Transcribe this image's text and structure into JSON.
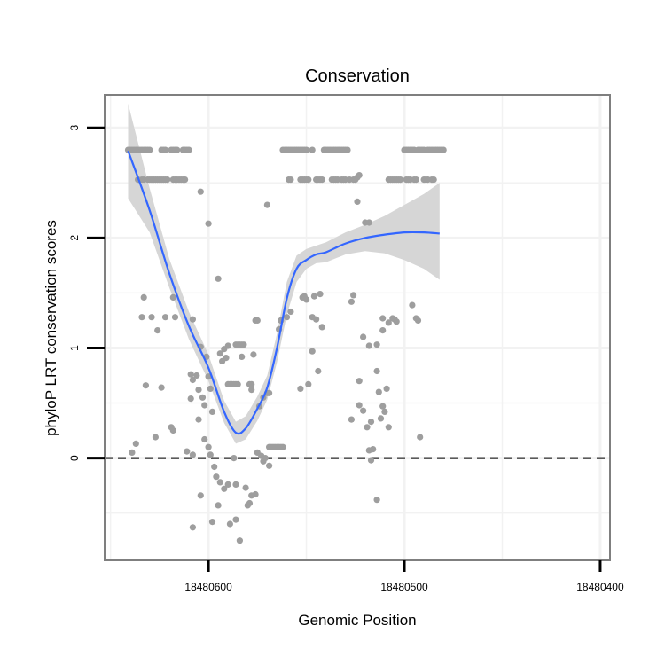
{
  "chart_data": {
    "type": "scatter",
    "title": "Conservation",
    "xlabel": "Genomic Position",
    "ylabel": "phyloP LRT conservation scores",
    "x_reversed": true,
    "xlim": [
      18480653,
      18480395
    ],
    "ylim": [
      -0.93,
      3.3
    ],
    "x_ticks": [
      18480600,
      18480500,
      18480400
    ],
    "x_tick_labels": [
      "18480600",
      "18480500",
      "18480400"
    ],
    "y_ticks": [
      0,
      1,
      2,
      3
    ],
    "y_tick_labels": [
      "0",
      "1",
      "2",
      "3"
    ],
    "reference_line": {
      "y": 0,
      "style": "dashed"
    },
    "grid": true,
    "colors": {
      "points": "#9e9e9e",
      "smooth_line": "#3366ff",
      "confidence_band": "#d6d6d6",
      "grid": "#f2f2f2",
      "panel_border": "#7f7f7f"
    },
    "points": [
      {
        "x": 18480641,
        "y": 2.8
      },
      {
        "x": 18480640,
        "y": 2.8
      },
      {
        "x": 18480639,
        "y": 2.8
      },
      {
        "x": 18480638,
        "y": 2.8
      },
      {
        "x": 18480637,
        "y": 2.8
      },
      {
        "x": 18480636,
        "y": 2.8
      },
      {
        "x": 18480635,
        "y": 2.8
      },
      {
        "x": 18480634,
        "y": 2.8
      },
      {
        "x": 18480633,
        "y": 2.8
      },
      {
        "x": 18480632,
        "y": 2.8
      },
      {
        "x": 18480631,
        "y": 2.8
      },
      {
        "x": 18480630,
        "y": 2.8
      },
      {
        "x": 18480624,
        "y": 2.8
      },
      {
        "x": 18480623,
        "y": 2.8
      },
      {
        "x": 18480622,
        "y": 2.8
      },
      {
        "x": 18480619,
        "y": 2.8
      },
      {
        "x": 18480618,
        "y": 2.8
      },
      {
        "x": 18480617,
        "y": 2.8
      },
      {
        "x": 18480616,
        "y": 2.8
      },
      {
        "x": 18480613,
        "y": 2.8
      },
      {
        "x": 18480612,
        "y": 2.8
      },
      {
        "x": 18480611,
        "y": 2.8
      },
      {
        "x": 18480610,
        "y": 2.8
      },
      {
        "x": 18480636,
        "y": 2.53
      },
      {
        "x": 18480634,
        "y": 2.53
      },
      {
        "x": 18480633,
        "y": 2.53
      },
      {
        "x": 18480631,
        "y": 2.53
      },
      {
        "x": 18480630,
        "y": 2.53
      },
      {
        "x": 18480629,
        "y": 2.53
      },
      {
        "x": 18480628,
        "y": 2.53
      },
      {
        "x": 18480627,
        "y": 2.53
      },
      {
        "x": 18480626,
        "y": 2.53
      },
      {
        "x": 18480625,
        "y": 2.53
      },
      {
        "x": 18480624,
        "y": 2.53
      },
      {
        "x": 18480623,
        "y": 2.53
      },
      {
        "x": 18480622,
        "y": 2.53
      },
      {
        "x": 18480621,
        "y": 2.53
      },
      {
        "x": 18480618,
        "y": 2.53
      },
      {
        "x": 18480617,
        "y": 2.53
      },
      {
        "x": 18480616,
        "y": 2.53
      },
      {
        "x": 18480615,
        "y": 2.53
      },
      {
        "x": 18480614,
        "y": 2.53
      },
      {
        "x": 18480613,
        "y": 2.53
      },
      {
        "x": 18480612,
        "y": 2.53
      },
      {
        "x": 18480604,
        "y": 2.42
      },
      {
        "x": 18480600,
        "y": 2.13
      },
      {
        "x": 18480595,
        "y": 1.63
      },
      {
        "x": 18480618,
        "y": 1.46
      },
      {
        "x": 18480633,
        "y": 1.46
      },
      {
        "x": 18480634,
        "y": 1.28
      },
      {
        "x": 18480629,
        "y": 1.28
      },
      {
        "x": 18480622,
        "y": 1.28
      },
      {
        "x": 18480617,
        "y": 1.28
      },
      {
        "x": 18480608,
        "y": 1.26
      },
      {
        "x": 18480626,
        "y": 1.16
      },
      {
        "x": 18480604,
        "y": 1.01
      },
      {
        "x": 18480601,
        "y": 0.92
      },
      {
        "x": 18480593,
        "y": 0.88
      },
      {
        "x": 18480591,
        "y": 0.91
      },
      {
        "x": 18480592,
        "y": 0.99
      },
      {
        "x": 18480606,
        "y": 0.75
      },
      {
        "x": 18480608,
        "y": 0.71
      },
      {
        "x": 18480609,
        "y": 0.76
      },
      {
        "x": 18480605,
        "y": 0.62
      },
      {
        "x": 18480600,
        "y": 0.74
      },
      {
        "x": 18480599,
        "y": 0.63
      },
      {
        "x": 18480594,
        "y": 0.95
      },
      {
        "x": 18480632,
        "y": 0.66
      },
      {
        "x": 18480624,
        "y": 0.64
      },
      {
        "x": 18480609,
        "y": 0.54
      },
      {
        "x": 18480603,
        "y": 0.55
      },
      {
        "x": 18480602,
        "y": 0.48
      },
      {
        "x": 18480598,
        "y": 0.42
      },
      {
        "x": 18480619,
        "y": 0.28
      },
      {
        "x": 18480618,
        "y": 0.25
      },
      {
        "x": 18480627,
        "y": 0.19
      },
      {
        "x": 18480637,
        "y": 0.13
      },
      {
        "x": 18480639,
        "y": 0.05
      },
      {
        "x": 18480605,
        "y": 0.35
      },
      {
        "x": 18480602,
        "y": 0.17
      },
      {
        "x": 18480600,
        "y": 0.1
      },
      {
        "x": 18480611,
        "y": 0.06
      },
      {
        "x": 18480608,
        "y": 0.03
      },
      {
        "x": 18480599,
        "y": 0.03
      },
      {
        "x": 18480597,
        "y": -0.08
      },
      {
        "x": 18480596,
        "y": -0.17
      },
      {
        "x": 18480594,
        "y": -0.22
      },
      {
        "x": 18480592,
        "y": -0.28
      },
      {
        "x": 18480590,
        "y": -0.24
      },
      {
        "x": 18480595,
        "y": -0.43
      },
      {
        "x": 18480598,
        "y": -0.58
      },
      {
        "x": 18480604,
        "y": -0.34
      },
      {
        "x": 18480608,
        "y": -0.63
      },
      {
        "x": 18480589,
        "y": -0.6
      },
      {
        "x": 18480586,
        "y": -0.56
      },
      {
        "x": 18480584,
        "y": -0.75
      },
      {
        "x": 18480586,
        "y": -0.24
      },
      {
        "x": 18480581,
        "y": -0.27
      },
      {
        "x": 18480578,
        "y": -0.34
      },
      {
        "x": 18480576,
        "y": -0.33
      },
      {
        "x": 18480580,
        "y": -0.43
      },
      {
        "x": 18480579,
        "y": -0.41
      },
      {
        "x": 18480590,
        "y": 0.67
      },
      {
        "x": 18480589,
        "y": 0.67
      },
      {
        "x": 18480588,
        "y": 0.67
      },
      {
        "x": 18480587,
        "y": 0.67
      },
      {
        "x": 18480586,
        "y": 0.67
      },
      {
        "x": 18480585,
        "y": 0.67
      },
      {
        "x": 18480579,
        "y": 0.67
      },
      {
        "x": 18480578,
        "y": 0.67
      },
      {
        "x": 18480586,
        "y": 1.03
      },
      {
        "x": 18480585,
        "y": 1.03
      },
      {
        "x": 18480584,
        "y": 1.03
      },
      {
        "x": 18480583,
        "y": 1.03
      },
      {
        "x": 18480582,
        "y": 1.03
      },
      {
        "x": 18480590,
        "y": 1.02
      },
      {
        "x": 18480587,
        "y": 0.0
      },
      {
        "x": 18480583,
        "y": 0.92
      },
      {
        "x": 18480577,
        "y": 0.94
      },
      {
        "x": 18480576,
        "y": 1.25
      },
      {
        "x": 18480575,
        "y": 1.25
      },
      {
        "x": 18480578,
        "y": 0.62
      },
      {
        "x": 18480572,
        "y": 0.55
      },
      {
        "x": 18480575,
        "y": 0.05
      },
      {
        "x": 18480573,
        "y": 0.02
      },
      {
        "x": 18480572,
        "y": -0.03
      },
      {
        "x": 18480571,
        "y": 0.0
      },
      {
        "x": 18480569,
        "y": -0.07
      },
      {
        "x": 18480574,
        "y": 0.47
      },
      {
        "x": 18480570,
        "y": 0.59
      },
      {
        "x": 18480569,
        "y": 0.59
      },
      {
        "x": 18480570,
        "y": 2.3
      },
      {
        "x": 18480569,
        "y": 0.1
      },
      {
        "x": 18480568,
        "y": 0.1
      },
      {
        "x": 18480567,
        "y": 0.1
      },
      {
        "x": 18480566,
        "y": 0.1
      },
      {
        "x": 18480565,
        "y": 0.1
      },
      {
        "x": 18480564,
        "y": 0.1
      },
      {
        "x": 18480563,
        "y": 0.1
      },
      {
        "x": 18480562,
        "y": 0.1
      },
      {
        "x": 18480564,
        "y": 1.17
      },
      {
        "x": 18480563,
        "y": 1.25
      },
      {
        "x": 18480560,
        "y": 1.28
      },
      {
        "x": 18480558,
        "y": 1.33
      },
      {
        "x": 18480552,
        "y": 1.46
      },
      {
        "x": 18480551,
        "y": 1.47
      },
      {
        "x": 18480546,
        "y": 1.47
      },
      {
        "x": 18480543,
        "y": 1.49
      },
      {
        "x": 18480550,
        "y": 1.44
      },
      {
        "x": 18480547,
        "y": 1.28
      },
      {
        "x": 18480545,
        "y": 1.26
      },
      {
        "x": 18480542,
        "y": 1.19
      },
      {
        "x": 18480547,
        "y": 0.97
      },
      {
        "x": 18480544,
        "y": 0.79
      },
      {
        "x": 18480549,
        "y": 0.67
      },
      {
        "x": 18480553,
        "y": 0.63
      },
      {
        "x": 18480562,
        "y": 2.8
      },
      {
        "x": 18480561,
        "y": 2.8
      },
      {
        "x": 18480560,
        "y": 2.8
      },
      {
        "x": 18480559,
        "y": 2.8
      },
      {
        "x": 18480558,
        "y": 2.8
      },
      {
        "x": 18480557,
        "y": 2.8
      },
      {
        "x": 18480556,
        "y": 2.8
      },
      {
        "x": 18480555,
        "y": 2.8
      },
      {
        "x": 18480554,
        "y": 2.8
      },
      {
        "x": 18480553,
        "y": 2.8
      },
      {
        "x": 18480552,
        "y": 2.8
      },
      {
        "x": 18480551,
        "y": 2.8
      },
      {
        "x": 18480550,
        "y": 2.8
      },
      {
        "x": 18480547,
        "y": 2.8
      },
      {
        "x": 18480541,
        "y": 2.8
      },
      {
        "x": 18480540,
        "y": 2.8
      },
      {
        "x": 18480539,
        "y": 2.8
      },
      {
        "x": 18480538,
        "y": 2.8
      },
      {
        "x": 18480537,
        "y": 2.8
      },
      {
        "x": 18480536,
        "y": 2.8
      },
      {
        "x": 18480535,
        "y": 2.8
      },
      {
        "x": 18480534,
        "y": 2.8
      },
      {
        "x": 18480533,
        "y": 2.8
      },
      {
        "x": 18480532,
        "y": 2.8
      },
      {
        "x": 18480531,
        "y": 2.8
      },
      {
        "x": 18480530,
        "y": 2.8
      },
      {
        "x": 18480529,
        "y": 2.8
      },
      {
        "x": 18480559,
        "y": 2.53
      },
      {
        "x": 18480558,
        "y": 2.53
      },
      {
        "x": 18480553,
        "y": 2.53
      },
      {
        "x": 18480552,
        "y": 2.53
      },
      {
        "x": 18480551,
        "y": 2.53
      },
      {
        "x": 18480550,
        "y": 2.53
      },
      {
        "x": 18480549,
        "y": 2.53
      },
      {
        "x": 18480545,
        "y": 2.53
      },
      {
        "x": 18480544,
        "y": 2.53
      },
      {
        "x": 18480543,
        "y": 2.53
      },
      {
        "x": 18480542,
        "y": 2.53
      },
      {
        "x": 18480537,
        "y": 2.53
      },
      {
        "x": 18480536,
        "y": 2.53
      },
      {
        "x": 18480535,
        "y": 2.53
      },
      {
        "x": 18480534,
        "y": 2.53
      },
      {
        "x": 18480532,
        "y": 2.53
      },
      {
        "x": 18480531,
        "y": 2.53
      },
      {
        "x": 18480530,
        "y": 2.53
      },
      {
        "x": 18480528,
        "y": 2.53
      },
      {
        "x": 18480526,
        "y": 2.53
      },
      {
        "x": 18480525,
        "y": 2.53
      },
      {
        "x": 18480524,
        "y": 2.55
      },
      {
        "x": 18480523,
        "y": 2.57
      },
      {
        "x": 18480524,
        "y": 2.33
      },
      {
        "x": 18480520,
        "y": 2.14
      },
      {
        "x": 18480518,
        "y": 2.14
      },
      {
        "x": 18480526,
        "y": 1.48
      },
      {
        "x": 18480527,
        "y": 1.42
      },
      {
        "x": 18480521,
        "y": 1.1
      },
      {
        "x": 18480518,
        "y": 1.02
      },
      {
        "x": 18480523,
        "y": 0.7
      },
      {
        "x": 18480523,
        "y": 0.48
      },
      {
        "x": 18480521,
        "y": 0.43
      },
      {
        "x": 18480527,
        "y": 0.35
      },
      {
        "x": 18480519,
        "y": 0.28
      },
      {
        "x": 18480517,
        "y": 0.33
      },
      {
        "x": 18480516,
        "y": 0.08
      },
      {
        "x": 18480517,
        "y": -0.02
      },
      {
        "x": 18480518,
        "y": 0.07
      },
      {
        "x": 18480514,
        "y": 0.79
      },
      {
        "x": 18480513,
        "y": 0.6
      },
      {
        "x": 18480511,
        "y": 0.47
      },
      {
        "x": 18480509,
        "y": 0.63
      },
      {
        "x": 18480510,
        "y": 0.42
      },
      {
        "x": 18480512,
        "y": 0.36
      },
      {
        "x": 18480508,
        "y": 0.28
      },
      {
        "x": 18480514,
        "y": -0.38
      },
      {
        "x": 18480511,
        "y": 1.27
      },
      {
        "x": 18480506,
        "y": 1.27
      },
      {
        "x": 18480505,
        "y": 1.26
      },
      {
        "x": 18480504,
        "y": 1.24
      },
      {
        "x": 18480514,
        "y": 1.03
      },
      {
        "x": 18480508,
        "y": 1.23
      },
      {
        "x": 18480511,
        "y": 1.16
      },
      {
        "x": 18480496,
        "y": 1.39
      },
      {
        "x": 18480494,
        "y": 1.27
      },
      {
        "x": 18480493,
        "y": 1.25
      },
      {
        "x": 18480492,
        "y": 0.19
      },
      {
        "x": 18480500,
        "y": 2.8
      },
      {
        "x": 18480499,
        "y": 2.8
      },
      {
        "x": 18480498,
        "y": 2.8
      },
      {
        "x": 18480497,
        "y": 2.8
      },
      {
        "x": 18480496,
        "y": 2.8
      },
      {
        "x": 18480495,
        "y": 2.8
      },
      {
        "x": 18480493,
        "y": 2.8
      },
      {
        "x": 18480492,
        "y": 2.8
      },
      {
        "x": 18480491,
        "y": 2.8
      },
      {
        "x": 18480490,
        "y": 2.8
      },
      {
        "x": 18480488,
        "y": 2.8
      },
      {
        "x": 18480487,
        "y": 2.8
      },
      {
        "x": 18480486,
        "y": 2.8
      },
      {
        "x": 18480485,
        "y": 2.8
      },
      {
        "x": 18480484,
        "y": 2.8
      },
      {
        "x": 18480483,
        "y": 2.8
      },
      {
        "x": 18480482,
        "y": 2.8
      },
      {
        "x": 18480481,
        "y": 2.8
      },
      {
        "x": 18480480,
        "y": 2.8
      },
      {
        "x": 18480508,
        "y": 2.53
      },
      {
        "x": 18480507,
        "y": 2.53
      },
      {
        "x": 18480506,
        "y": 2.53
      },
      {
        "x": 18480505,
        "y": 2.53
      },
      {
        "x": 18480504,
        "y": 2.53
      },
      {
        "x": 18480503,
        "y": 2.53
      },
      {
        "x": 18480502,
        "y": 2.53
      },
      {
        "x": 18480499,
        "y": 2.53
      },
      {
        "x": 18480498,
        "y": 2.53
      },
      {
        "x": 18480497,
        "y": 2.53
      },
      {
        "x": 18480495,
        "y": 2.53
      },
      {
        "x": 18480494,
        "y": 2.53
      },
      {
        "x": 18480490,
        "y": 2.53
      },
      {
        "x": 18480489,
        "y": 2.53
      },
      {
        "x": 18480488,
        "y": 2.53
      },
      {
        "x": 18480486,
        "y": 2.53
      },
      {
        "x": 18480485,
        "y": 2.53
      }
    ],
    "smooth": {
      "x": [
        18480641,
        18480630,
        18480620,
        18480610,
        18480600,
        18480592,
        18480586,
        18480581,
        18480575,
        18480570,
        18480565,
        18480560,
        18480555,
        18480550,
        18480545,
        18480540,
        18480530,
        18480520,
        18480510,
        18480500,
        18480490,
        18480482
      ],
      "y": [
        2.79,
        2.25,
        1.68,
        1.2,
        0.82,
        0.42,
        0.23,
        0.27,
        0.45,
        0.64,
        1.0,
        1.45,
        1.72,
        1.8,
        1.85,
        1.87,
        1.95,
        2.0,
        2.03,
        2.05,
        2.05,
        2.04
      ],
      "lower": [
        2.36,
        2.05,
        1.55,
        1.08,
        0.7,
        0.32,
        0.13,
        0.17,
        0.34,
        0.53,
        0.87,
        1.3,
        1.6,
        1.72,
        1.77,
        1.78,
        1.85,
        1.88,
        1.86,
        1.8,
        1.72,
        1.62
      ],
      "upper": [
        3.22,
        2.45,
        1.81,
        1.33,
        0.94,
        0.52,
        0.33,
        0.38,
        0.56,
        0.75,
        1.13,
        1.6,
        1.84,
        1.9,
        1.93,
        1.96,
        2.05,
        2.12,
        2.2,
        2.3,
        2.4,
        2.5
      ]
    }
  }
}
